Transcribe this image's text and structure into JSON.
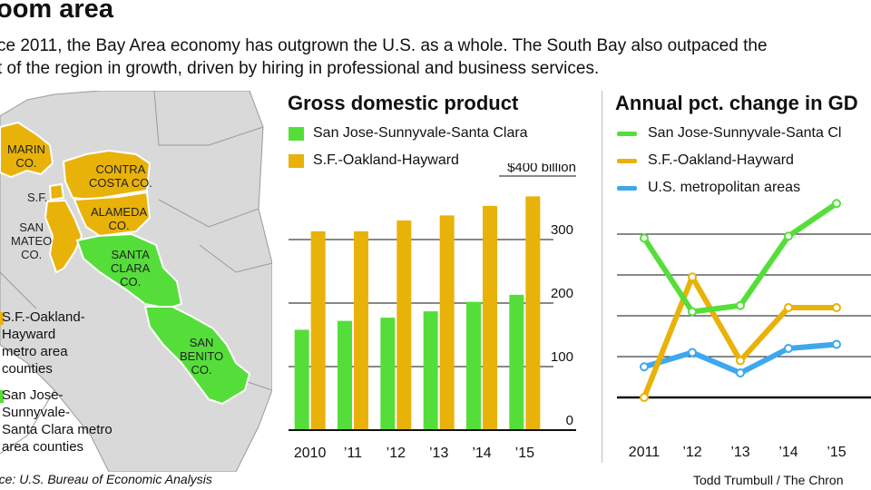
{
  "header": {
    "title": "oom area",
    "intro_line1": "ce 2011, the Bay Area economy has outgrown the U.S. as a whole. The South Bay also outpaced the",
    "intro_line2": "t of the region in growth, driven by hiring in professional and business services."
  },
  "map": {
    "counties": {
      "marin": "MARIN\nCO.",
      "contra_costa": "CONTRA\nCOSTA CO.",
      "sf": "S.F.",
      "alameda": "ALAMEDA\nCO.",
      "san_mateo": "SAN\nMATEO\nCO.",
      "santa_clara": "SANTA\nCLARA\nCO.",
      "san_benito": "SAN\nBENITO\nCO."
    },
    "key": {
      "sf_metro": "S.F.-Oakland-\nHayward\nmetro area\ncounties",
      "sj_metro": "San Jose-\nSunnyvale-\nSanta Clara metro\narea counties"
    }
  },
  "colors": {
    "green": "#55de3a",
    "gold": "#e9b209",
    "blue": "#3ea8ee",
    "map_gray": "#d9d9d9",
    "map_border": "#9a9a9a"
  },
  "source": "rce: U.S. Bureau of Economic Analysis",
  "credit": "Todd Trumbull / The Chron",
  "chart_data": [
    {
      "type": "bar",
      "title": "Gross domestic product",
      "categories": [
        "2010",
        "’11",
        "’12",
        "’13",
        "’14",
        "’15"
      ],
      "series": [
        {
          "name": "San Jose-Sunnyvale-Santa Clara",
          "color": "#55de3a",
          "values": [
            158,
            172,
            177,
            187,
            202,
            213
          ]
        },
        {
          "name": "S.F.-Oakland-Hayward",
          "color": "#e9b209",
          "values": [
            313,
            313,
            330,
            338,
            353,
            368
          ]
        }
      ],
      "yticks": [
        {
          "value": 0,
          "label": "0"
        },
        {
          "value": 100,
          "label": "100"
        },
        {
          "value": 200,
          "label": "200"
        },
        {
          "value": 300,
          "label": "300"
        },
        {
          "value": 400,
          "label": "$400 billion"
        }
      ],
      "ylim": [
        0,
        400
      ],
      "grid": true,
      "legend": "top"
    },
    {
      "type": "line",
      "title": "Annual pct. change in GD",
      "categories": [
        "2011",
        "’12",
        "’13",
        "’14",
        "’15"
      ],
      "series": [
        {
          "name": "San Jose-Sunnyvale-Santa Cl",
          "color": "#55de3a",
          "values": [
            7.8,
            4.2,
            4.5,
            7.9,
            9.5
          ]
        },
        {
          "name": "S.F.-Oakland-Hayward",
          "color": "#e9b209",
          "values": [
            0.0,
            5.9,
            1.8,
            4.4,
            4.4
          ]
        },
        {
          "name": "U.S. metropolitan areas",
          "color": "#3ea8ee",
          "values": [
            1.5,
            2.2,
            1.2,
            2.4,
            2.6
          ]
        }
      ],
      "ylim": [
        -2,
        10
      ],
      "grid": true,
      "legend": "top"
    }
  ]
}
